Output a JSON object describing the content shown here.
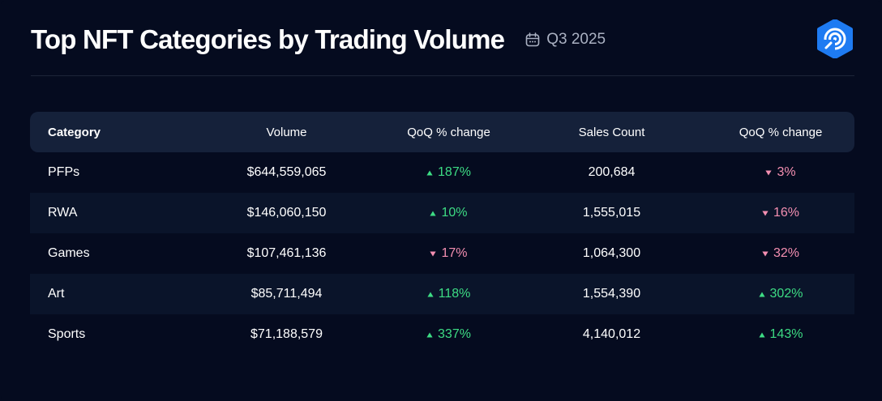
{
  "header": {
    "title": "Top NFT Categories by Trading Volume",
    "period": "Q3 2025",
    "calendar_icon": "calendar-icon",
    "logo_icon": "logo-icon"
  },
  "colors": {
    "background": "#050b1f",
    "header_row": "#15213a",
    "alt_row": "#0a142a",
    "up": "#3ddc84",
    "down": "#f48fb1",
    "logo": "#1e7bf2"
  },
  "chart_data": {
    "type": "table",
    "columns": [
      "Category",
      "Volume",
      "QoQ % change",
      "Sales Count",
      "QoQ % change"
    ],
    "rows": [
      {
        "category": "PFPs",
        "volume": "$644,559,065",
        "volume_change": "187%",
        "volume_dir": "up",
        "sales": "200,684",
        "sales_change": "3%",
        "sales_dir": "down"
      },
      {
        "category": "RWA",
        "volume": "$146,060,150",
        "volume_change": "10%",
        "volume_dir": "up",
        "sales": "1,555,015",
        "sales_change": "16%",
        "sales_dir": "down"
      },
      {
        "category": "Games",
        "volume": "$107,461,136",
        "volume_change": "17%",
        "volume_dir": "down",
        "sales": "1,064,300",
        "sales_change": "32%",
        "sales_dir": "down"
      },
      {
        "category": "Art",
        "volume": "$85,711,494",
        "volume_change": "118%",
        "volume_dir": "up",
        "sales": "1,554,390",
        "sales_change": "302%",
        "sales_dir": "up"
      },
      {
        "category": "Sports",
        "volume": "$71,188,579",
        "volume_change": "337%",
        "volume_dir": "up",
        "sales": "4,140,012",
        "sales_change": "143%",
        "sales_dir": "up"
      }
    ]
  }
}
